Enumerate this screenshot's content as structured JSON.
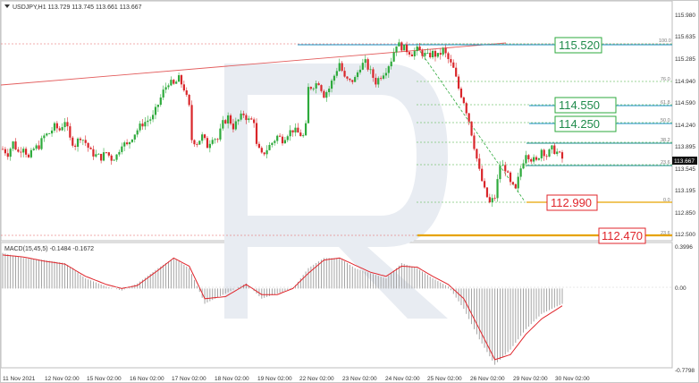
{
  "header": {
    "symbol_text": "USDJPY,H1  113.729 113.745 113.661 113.667",
    "macd_text": "MACD(15,45,5) -0.1484 -0.1672"
  },
  "price_axis": {
    "ticks": [
      "115.980",
      "115.635",
      "115.285",
      "114.940",
      "114.590",
      "114.240",
      "113.895",
      "113.545",
      "113.195",
      "112.850",
      "112.500"
    ],
    "current_price": "113.667"
  },
  "macd_axis": {
    "ticks": [
      "0.3996",
      "0.00",
      "-0.7798"
    ]
  },
  "time_axis": {
    "labels": [
      "11 Nov 2021",
      "12 Nov 02:00",
      "15 Nov 02:00",
      "16 Nov 02:00",
      "17 Nov 02:00",
      "18 Nov 02:00",
      "19 Nov 02:00",
      "22 Nov 02:00",
      "23 Nov 02:00",
      "24 Nov 02:00",
      "25 Nov 02:00",
      "26 Nov 02:00",
      "29 Nov 02:00",
      "30 Nov 02:00"
    ]
  },
  "fibonacci": {
    "levels": [
      "100.0",
      "76.0",
      "61.8",
      "50.0",
      "38.2",
      "23.6",
      "0.0",
      "23.6"
    ]
  },
  "annotations": {
    "level_115520": "115.520",
    "level_114550": "114.550",
    "level_114250": "114.250",
    "level_112990": "112.990",
    "level_112470": "112.470"
  },
  "colors": {
    "bull": "#2eaa3c",
    "bear": "#d9262a",
    "trend_line": "#e35d5d",
    "fib_line": "#7ec87a",
    "blue_level": "#1a8fc0",
    "teal_level": "#178b8b",
    "orange_level": "#e6a300",
    "watermark": "#e8ecf2"
  },
  "chart_data": {
    "type": "candlestick",
    "symbol": "USDJPY",
    "timeframe": "H1",
    "ylim": [
      112.35,
      116.08
    ],
    "close_path": [
      [
        0,
        113.85
      ],
      [
        2,
        113.78
      ],
      [
        4,
        113.95
      ],
      [
        6,
        113.8
      ],
      [
        8,
        113.9
      ],
      [
        10,
        113.7
      ],
      [
        12,
        113.85
      ],
      [
        14,
        113.9
      ],
      [
        16,
        114.05
      ],
      [
        18,
        114.1
      ],
      [
        20,
        114.2
      ],
      [
        22,
        114.15
      ],
      [
        24,
        114.3
      ],
      [
        26,
        114.0
      ],
      [
        28,
        113.92
      ],
      [
        30,
        114.05
      ],
      [
        32,
        113.95
      ],
      [
        34,
        113.8
      ],
      [
        36,
        113.75
      ],
      [
        38,
        113.72
      ],
      [
        40,
        113.8
      ],
      [
        42,
        113.7
      ],
      [
        44,
        113.75
      ],
      [
        46,
        113.95
      ],
      [
        48,
        113.9
      ],
      [
        50,
        114.05
      ],
      [
        52,
        114.15
      ],
      [
        54,
        114.25
      ],
      [
        56,
        114.3
      ],
      [
        58,
        114.35
      ],
      [
        60,
        114.55
      ],
      [
        62,
        114.75
      ],
      [
        64,
        114.9
      ],
      [
        66,
        114.85
      ],
      [
        68,
        114.95
      ],
      [
        70,
        114.8
      ],
      [
        72,
        114.5
      ],
      [
        73,
        114.0
      ],
      [
        75,
        113.95
      ],
      [
        77,
        114.05
      ],
      [
        79,
        113.9
      ],
      [
        81,
        114.05
      ],
      [
        83,
        114.0
      ],
      [
        85,
        114.25
      ],
      [
        87,
        114.35
      ],
      [
        89,
        114.2
      ],
      [
        91,
        114.3
      ],
      [
        93,
        114.4
      ],
      [
        95,
        114.3
      ],
      [
        97,
        114.3
      ],
      [
        98,
        113.9
      ],
      [
        100,
        113.75
      ],
      [
        102,
        113.85
      ],
      [
        104,
        113.95
      ],
      [
        106,
        114.05
      ],
      [
        108,
        114.0
      ],
      [
        110,
        114.1
      ],
      [
        112,
        114.15
      ],
      [
        114,
        114.1
      ],
      [
        116,
        114.05
      ],
      [
        117,
        114.2
      ],
      [
        118,
        114.8
      ],
      [
        120,
        114.85
      ],
      [
        122,
        114.9
      ],
      [
        124,
        114.7
      ],
      [
        126,
        114.8
      ],
      [
        128,
        115.0
      ],
      [
        130,
        115.2
      ],
      [
        132,
        114.95
      ],
      [
        134,
        114.9
      ],
      [
        136,
        114.95
      ],
      [
        138,
        115.15
      ],
      [
        140,
        115.2
      ],
      [
        142,
        115.05
      ],
      [
        144,
        114.9
      ],
      [
        146,
        115.0
      ],
      [
        148,
        115.1
      ],
      [
        150,
        115.25
      ],
      [
        152,
        115.5
      ],
      [
        154,
        115.45
      ],
      [
        156,
        115.4
      ],
      [
        158,
        115.35
      ],
      [
        160,
        115.4
      ],
      [
        162,
        115.35
      ],
      [
        164,
        115.3
      ],
      [
        166,
        115.35
      ],
      [
        168,
        115.3
      ],
      [
        170,
        115.4
      ],
      [
        172,
        115.25
      ],
      [
        174,
        115.1
      ],
      [
        176,
        114.8
      ],
      [
        178,
        114.6
      ],
      [
        180,
        114.3
      ],
      [
        182,
        113.9
      ],
      [
        184,
        113.5
      ],
      [
        186,
        113.2
      ],
      [
        188,
        113.0
      ],
      [
        190,
        113.1
      ],
      [
        192,
        113.6
      ],
      [
        194,
        113.55
      ],
      [
        196,
        113.3
      ],
      [
        198,
        113.2
      ],
      [
        200,
        113.55
      ],
      [
        202,
        113.8
      ],
      [
        204,
        113.7
      ],
      [
        206,
        113.65
      ],
      [
        208,
        113.85
      ],
      [
        210,
        113.75
      ],
      [
        212,
        113.85
      ],
      [
        214,
        113.8
      ],
      [
        216,
        113.7
      ]
    ],
    "macd": {
      "name": "MACD(15,45,5)",
      "histogram_last": -0.1484,
      "signal_last": -0.1672,
      "ylim": [
        -0.7798,
        0.3996
      ],
      "histogram": [
        [
          0,
          0.35
        ],
        [
          8,
          0.3
        ],
        [
          16,
          0.28
        ],
        [
          24,
          0.25
        ],
        [
          32,
          0.1
        ],
        [
          40,
          0.02
        ],
        [
          46,
          -0.02
        ],
        [
          52,
          0.05
        ],
        [
          60,
          0.2
        ],
        [
          66,
          0.3
        ],
        [
          72,
          0.2
        ],
        [
          78,
          -0.15
        ],
        [
          86,
          -0.05
        ],
        [
          94,
          0.05
        ],
        [
          100,
          -0.1
        ],
        [
          106,
          -0.05
        ],
        [
          112,
          0.0
        ],
        [
          118,
          0.2
        ],
        [
          124,
          0.3
        ],
        [
          130,
          0.3
        ],
        [
          136,
          0.2
        ],
        [
          142,
          0.15
        ],
        [
          148,
          0.1
        ],
        [
          154,
          0.25
        ],
        [
          160,
          0.2
        ],
        [
          166,
          0.1
        ],
        [
          172,
          0.02
        ],
        [
          178,
          -0.2
        ],
        [
          184,
          -0.5
        ],
        [
          190,
          -0.75
        ],
        [
          196,
          -0.6
        ],
        [
          202,
          -0.4
        ],
        [
          208,
          -0.25
        ],
        [
          216,
          -0.15
        ]
      ],
      "signal": [
        [
          0,
          0.33
        ],
        [
          8,
          0.31
        ],
        [
          16,
          0.27
        ],
        [
          24,
          0.24
        ],
        [
          32,
          0.12
        ],
        [
          40,
          0.04
        ],
        [
          46,
          0.0
        ],
        [
          52,
          0.03
        ],
        [
          60,
          0.18
        ],
        [
          66,
          0.3
        ],
        [
          72,
          0.22
        ],
        [
          78,
          -0.1
        ],
        [
          86,
          -0.08
        ],
        [
          94,
          0.04
        ],
        [
          100,
          -0.06
        ],
        [
          106,
          -0.06
        ],
        [
          112,
          0.0
        ],
        [
          118,
          0.15
        ],
        [
          124,
          0.28
        ],
        [
          130,
          0.3
        ],
        [
          136,
          0.23
        ],
        [
          142,
          0.16
        ],
        [
          148,
          0.12
        ],
        [
          154,
          0.22
        ],
        [
          160,
          0.21
        ],
        [
          166,
          0.12
        ],
        [
          172,
          0.04
        ],
        [
          178,
          -0.1
        ],
        [
          184,
          -0.4
        ],
        [
          190,
          -0.7
        ],
        [
          196,
          -0.65
        ],
        [
          202,
          -0.45
        ],
        [
          208,
          -0.3
        ],
        [
          216,
          -0.17
        ]
      ]
    }
  }
}
